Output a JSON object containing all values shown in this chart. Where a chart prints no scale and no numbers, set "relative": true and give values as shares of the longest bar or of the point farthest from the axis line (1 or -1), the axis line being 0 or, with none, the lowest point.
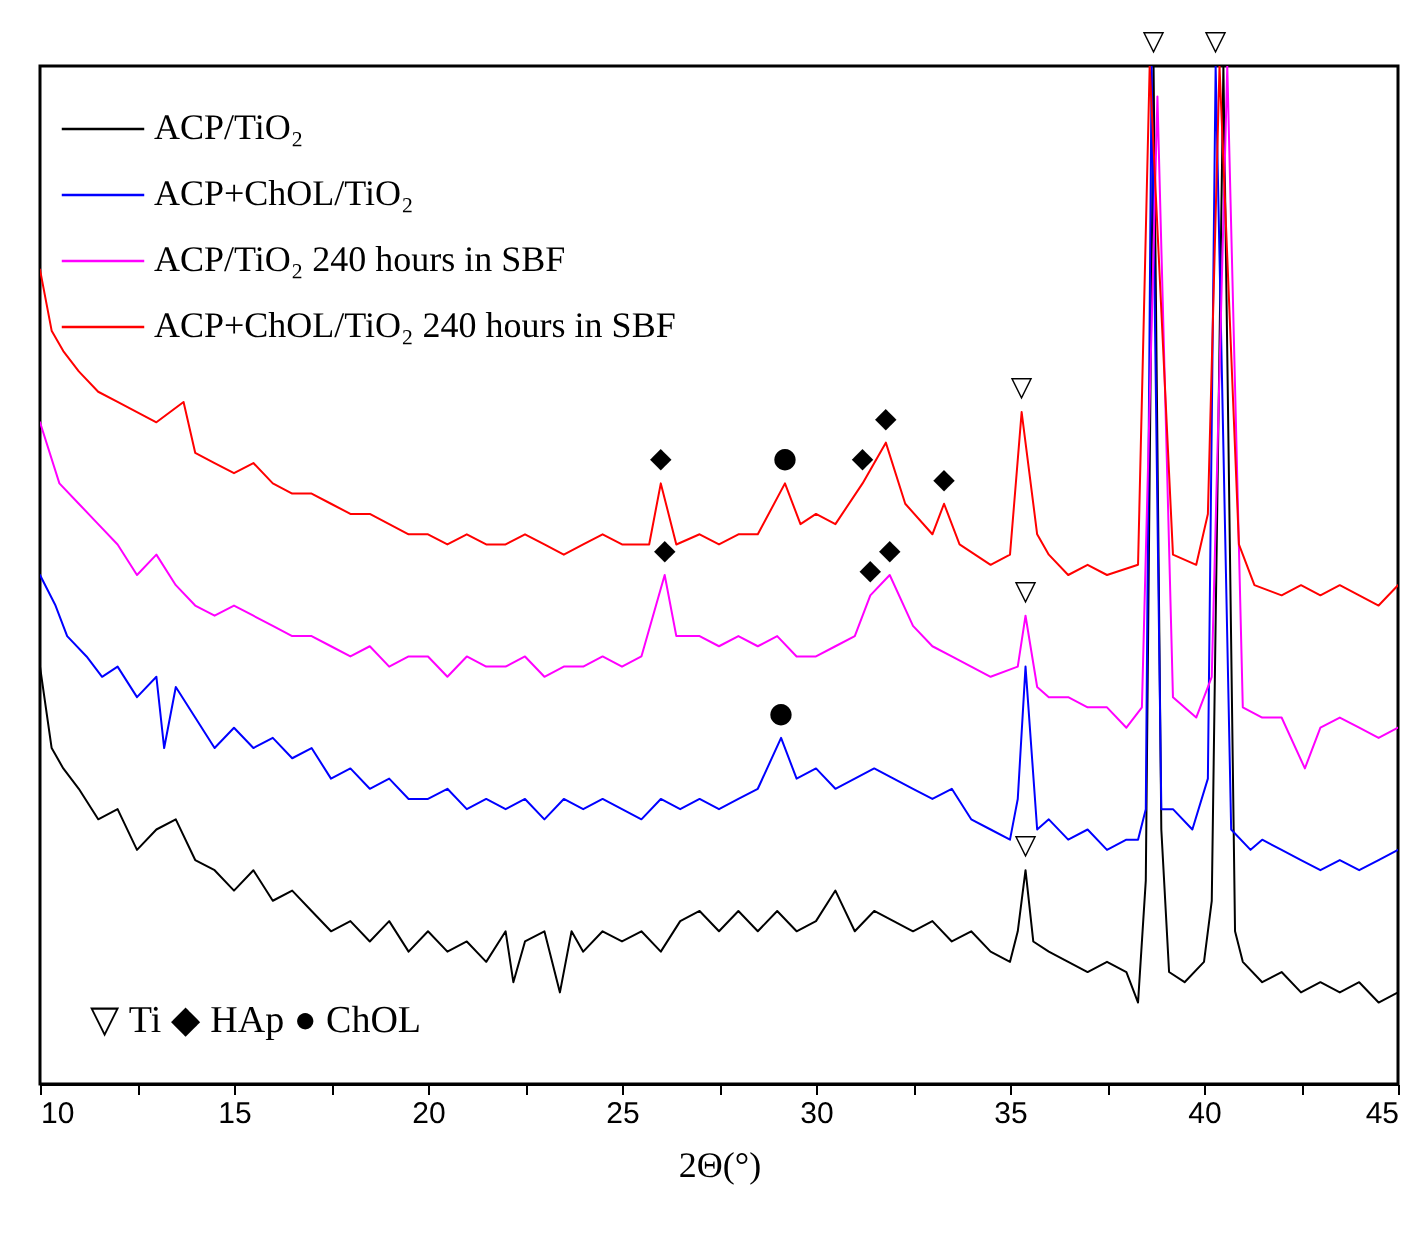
{
  "chart_data": {
    "type": "line",
    "relative": true,
    "xlabel": "2Θ(°)",
    "xlim": [
      10,
      45
    ],
    "xticks": [
      10,
      {
        "value": 12.5,
        "label": null
      },
      15,
      {
        "value": 17.5,
        "label": null
      },
      20,
      {
        "value": 22.5,
        "label": null
      },
      25,
      {
        "value": 27.5,
        "label": null
      },
      30,
      {
        "value": 32.5,
        "label": null
      },
      35,
      {
        "value": 37.5,
        "label": null
      },
      40,
      {
        "value": 42.5,
        "label": null
      },
      45
    ],
    "legend": "top left",
    "series": [
      {
        "name": "ACP/TiO₂",
        "color": "#000000",
        "x": [
          10,
          10.3,
          10.6,
          11,
          11.5,
          12,
          12.5,
          13,
          13.5,
          14,
          14.5,
          15,
          15.5,
          16,
          16.5,
          17,
          17.5,
          18,
          18.5,
          19,
          19.5,
          20,
          20.5,
          21,
          21.5,
          22,
          22.2,
          22.5,
          23,
          23.4,
          23.7,
          24,
          24.5,
          25,
          25.5,
          26,
          26.5,
          27,
          27.5,
          28,
          28.5,
          29,
          29.5,
          30,
          30.5,
          31,
          31.5,
          32,
          32.5,
          33,
          33.5,
          34,
          34.5,
          35,
          35.2,
          35.4,
          35.6,
          36,
          36.5,
          37,
          37.5,
          38,
          38.3,
          38.5,
          38.7,
          38.9,
          39.1,
          39.5,
          40,
          40.2,
          40.5,
          40.8,
          41,
          41.5,
          42,
          42.5,
          43,
          43.5,
          44,
          44.5,
          45
        ],
        "values": [
          0.41,
          0.33,
          0.31,
          0.29,
          0.26,
          0.27,
          0.23,
          0.25,
          0.26,
          0.22,
          0.21,
          0.19,
          0.21,
          0.18,
          0.19,
          0.17,
          0.15,
          0.16,
          0.14,
          0.16,
          0.13,
          0.15,
          0.13,
          0.14,
          0.12,
          0.15,
          0.1,
          0.14,
          0.15,
          0.09,
          0.15,
          0.13,
          0.15,
          0.14,
          0.15,
          0.13,
          0.16,
          0.17,
          0.15,
          0.17,
          0.15,
          0.17,
          0.15,
          0.16,
          0.19,
          0.15,
          0.17,
          0.16,
          0.15,
          0.16,
          0.14,
          0.15,
          0.13,
          0.12,
          0.15,
          0.21,
          0.14,
          0.13,
          0.12,
          0.11,
          0.12,
          0.11,
          0.08,
          0.2,
          1,
          0.25,
          0.11,
          0.1,
          0.12,
          0.18,
          1,
          0.15,
          0.12,
          0.1,
          0.11,
          0.09,
          0.1,
          0.09,
          0.1,
          0.08,
          0.09
        ]
      },
      {
        "name": "ACP+ChOL/TiO₂",
        "color": "#0000ff",
        "x": [
          10,
          10.4,
          10.7,
          11.2,
          11.6,
          12,
          12.5,
          13,
          13.2,
          13.5,
          14,
          14.5,
          15,
          15.5,
          16,
          16.5,
          17,
          17.5,
          18,
          18.5,
          19,
          19.5,
          20,
          20.5,
          21,
          21.5,
          22,
          22.5,
          23,
          23.5,
          24,
          24.5,
          25,
          25.5,
          26,
          26.5,
          27,
          27.5,
          28,
          28.5,
          29.1,
          29.5,
          30,
          30.5,
          31,
          31.5,
          32,
          32.5,
          33,
          33.5,
          34,
          34.5,
          35,
          35.2,
          35.4,
          35.7,
          36,
          36.5,
          37,
          37.5,
          38,
          38.3,
          38.5,
          38.65,
          38.9,
          39.2,
          39.7,
          40.1,
          40.3,
          40.7,
          41.2,
          41.5,
          42,
          42.5,
          43,
          43.5,
          44,
          44.5,
          45
        ],
        "values": [
          0.5,
          0.47,
          0.44,
          0.42,
          0.4,
          0.41,
          0.38,
          0.4,
          0.33,
          0.39,
          0.36,
          0.33,
          0.35,
          0.33,
          0.34,
          0.32,
          0.33,
          0.3,
          0.31,
          0.29,
          0.3,
          0.28,
          0.28,
          0.29,
          0.27,
          0.28,
          0.27,
          0.28,
          0.26,
          0.28,
          0.27,
          0.28,
          0.27,
          0.26,
          0.28,
          0.27,
          0.28,
          0.27,
          0.28,
          0.29,
          0.34,
          0.3,
          0.31,
          0.29,
          0.3,
          0.31,
          0.3,
          0.29,
          0.28,
          0.29,
          0.26,
          0.25,
          0.24,
          0.28,
          0.41,
          0.25,
          0.26,
          0.24,
          0.25,
          0.23,
          0.24,
          0.24,
          0.27,
          1,
          0.27,
          0.27,
          0.25,
          0.3,
          1,
          0.25,
          0.23,
          0.24,
          0.23,
          0.22,
          0.21,
          0.22,
          0.21,
          0.22,
          0.23
        ]
      },
      {
        "name": "ACP/TiO₂ 240 hours in SBF",
        "color": "#ff00ff",
        "x": [
          10,
          10.5,
          11,
          11.5,
          12,
          12.5,
          13,
          13.5,
          14,
          14.5,
          15,
          15.5,
          16,
          16.5,
          17,
          17.5,
          18,
          18.5,
          19,
          19.5,
          20,
          20.5,
          21,
          21.5,
          22,
          22.5,
          23,
          23.5,
          24,
          24.5,
          25,
          25.5,
          26.1,
          26.4,
          27,
          27.5,
          28,
          28.5,
          29,
          29.5,
          30,
          30.5,
          31,
          31.4,
          31.9,
          32.5,
          33,
          33.5,
          34,
          34.5,
          35.2,
          35.4,
          35.7,
          36,
          36.5,
          37,
          37.5,
          38,
          38.4,
          38.8,
          39.2,
          39.8,
          40.2,
          40.6,
          41,
          41.5,
          42,
          42.6,
          43,
          43.5,
          44,
          44.5,
          45
        ],
        "values": [
          0.65,
          0.59,
          0.57,
          0.55,
          0.53,
          0.5,
          0.52,
          0.49,
          0.47,
          0.46,
          0.47,
          0.46,
          0.45,
          0.44,
          0.44,
          0.43,
          0.42,
          0.43,
          0.41,
          0.42,
          0.42,
          0.4,
          0.42,
          0.41,
          0.41,
          0.42,
          0.4,
          0.41,
          0.41,
          0.42,
          0.41,
          0.42,
          0.5,
          0.44,
          0.44,
          0.43,
          0.44,
          0.43,
          0.44,
          0.42,
          0.42,
          0.43,
          0.44,
          0.48,
          0.5,
          0.45,
          0.43,
          0.42,
          0.41,
          0.4,
          0.41,
          0.46,
          0.39,
          0.38,
          0.38,
          0.37,
          0.37,
          0.35,
          0.37,
          0.97,
          0.38,
          0.36,
          0.4,
          1,
          0.37,
          0.36,
          0.36,
          0.31,
          0.35,
          0.36,
          0.35,
          0.34,
          0.35
        ]
      },
      {
        "name": "ACP+ChOL/TiO₂ 240 hours in SBF",
        "color": "#ff0000",
        "x": [
          10,
          10.3,
          10.6,
          11,
          11.5,
          12,
          12.5,
          13,
          13.7,
          14,
          14.5,
          15,
          15.5,
          16,
          16.5,
          17,
          17.5,
          18,
          18.5,
          19,
          19.5,
          20,
          20.5,
          21,
          21.5,
          22,
          22.5,
          23,
          23.5,
          24,
          24.5,
          25,
          25.7,
          26,
          26.4,
          27,
          27.5,
          28,
          28.5,
          29.2,
          29.6,
          30,
          30.5,
          31.2,
          31.8,
          32.3,
          33,
          33.3,
          33.7,
          34.5,
          35,
          35.3,
          35.7,
          36,
          36.5,
          37,
          37.5,
          38.3,
          38.6,
          39.2,
          39.8,
          40.1,
          40.4,
          40.9,
          41.3,
          42,
          42.5,
          43,
          43.5,
          44,
          44.5,
          45
        ],
        "values": [
          0.8,
          0.74,
          0.72,
          0.7,
          0.68,
          0.67,
          0.66,
          0.65,
          0.67,
          0.62,
          0.61,
          0.6,
          0.61,
          0.59,
          0.58,
          0.58,
          0.57,
          0.56,
          0.56,
          0.55,
          0.54,
          0.54,
          0.53,
          0.54,
          0.53,
          0.53,
          0.54,
          0.53,
          0.52,
          0.53,
          0.54,
          0.53,
          0.53,
          0.59,
          0.53,
          0.54,
          0.53,
          0.54,
          0.54,
          0.59,
          0.55,
          0.56,
          0.55,
          0.59,
          0.63,
          0.57,
          0.54,
          0.57,
          0.53,
          0.51,
          0.52,
          0.66,
          0.54,
          0.52,
          0.5,
          0.51,
          0.5,
          0.51,
          1,
          0.52,
          0.51,
          0.56,
          1,
          0.53,
          0.49,
          0.48,
          0.49,
          0.48,
          0.49,
          0.48,
          0.47,
          0.49
        ]
      }
    ],
    "annotations": [
      {
        "text": "▽",
        "x": 38.7,
        "y": 1
      },
      {
        "text": "▽",
        "x": 40.3,
        "y": 1
      },
      {
        "text": "▽",
        "x": 35.3,
        "y": 0.66
      },
      {
        "text": "▽",
        "x": 35.4,
        "y": 0.46
      },
      {
        "text": "▽",
        "x": 35.4,
        "y": 0.21
      },
      {
        "text": "◆",
        "x": 26,
        "y": 0.59
      },
      {
        "text": "●",
        "x": 29.2,
        "y": 0.59
      },
      {
        "text": "◆",
        "x": 31.2,
        "y": 0.59
      },
      {
        "text": "◆",
        "x": 31.8,
        "y": 0.63
      },
      {
        "text": "◆",
        "x": 33.3,
        "y": 0.57
      },
      {
        "text": "◆",
        "x": 26.1,
        "y": 0.5
      },
      {
        "text": "◆",
        "x": 31.4,
        "y": 0.48
      },
      {
        "text": "◆",
        "x": 31.9,
        "y": 0.5
      },
      {
        "text": "●",
        "x": 29.1,
        "y": 0.34
      },
      "▽ Ti     ◆ HAp     ● ChOL"
    ]
  }
}
